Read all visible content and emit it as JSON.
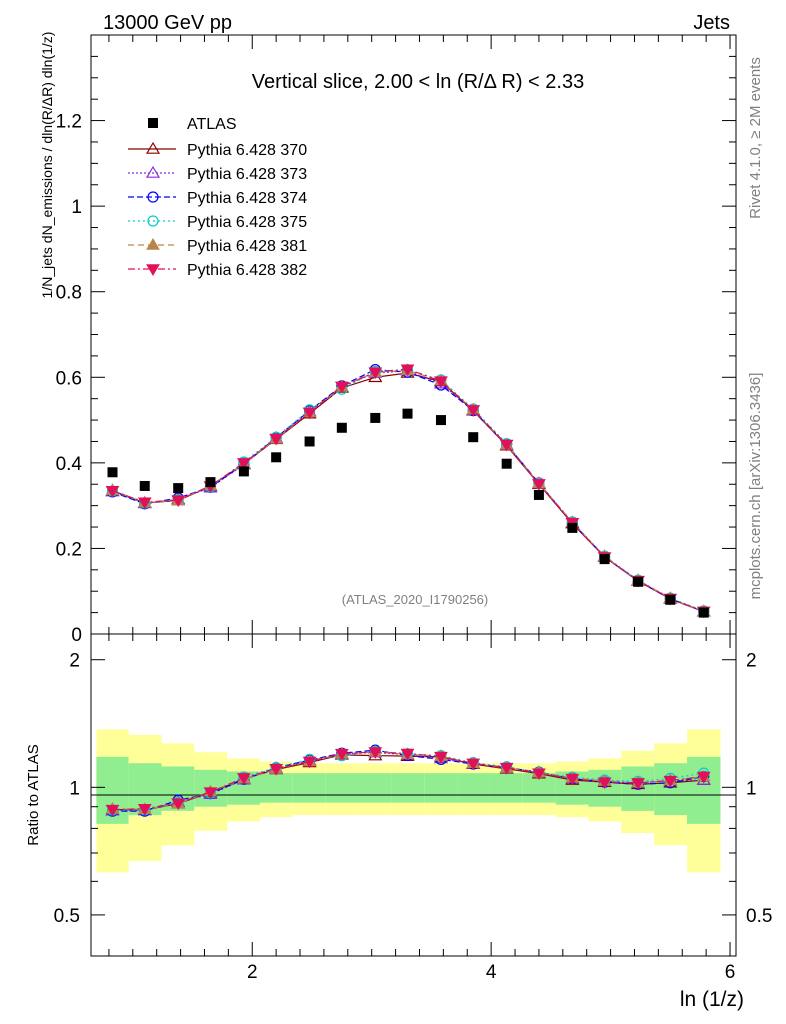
{
  "header": {
    "left": "13000 GeV pp",
    "right": "Jets"
  },
  "chart_data": {
    "type": "scatter",
    "title": "Vertical slice, 2.00 < ln (R/Δ R) < 2.33",
    "xlabel": "ln (1/z)",
    "ylabel_main": "1/N_jets dN_emissions / dln(R/ΔR) dln(1/z)",
    "ylabel_ratio": "Ratio to ATLAS",
    "xlim": [
      0.65,
      6.05
    ],
    "ylim_main": [
      0.0,
      1.4
    ],
    "ylim_ratio": [
      0.4,
      2.3
    ],
    "x_ticks": [
      "2",
      "4",
      "6"
    ],
    "y_ticks_main": [
      "0",
      "0.2",
      "0.4",
      "0.6",
      "0.8",
      "1",
      "1.2"
    ],
    "y_ticks_ratio": [
      "0.5",
      "1",
      "2"
    ],
    "side_labels": {
      "rivet": "Rivet 4.1.0, ≥ 2M events",
      "mcplots": "mcplots.cern.ch [arXiv:1306.3436]"
    },
    "watermark": "(ATLAS_2020_I1790256)",
    "x": [
      0.83,
      1.1,
      1.38,
      1.65,
      1.93,
      2.2,
      2.48,
      2.75,
      3.03,
      3.3,
      3.58,
      3.85,
      4.13,
      4.4,
      4.68,
      4.95,
      5.23,
      5.5,
      5.78
    ],
    "data": {
      "name": "ATLAS",
      "values": [
        0.378,
        0.346,
        0.341,
        0.355,
        0.38,
        0.413,
        0.45,
        0.482,
        0.505,
        0.515,
        0.5,
        0.46,
        0.398,
        0.325,
        0.248,
        0.175,
        0.122,
        0.08,
        0.05
      ]
    },
    "series": [
      {
        "name": "Pythia 6.428 370",
        "color": "#8b0000",
        "marker": "triangle-open",
        "values": [
          0.335,
          0.306,
          0.312,
          0.345,
          0.398,
          0.455,
          0.515,
          0.575,
          0.6,
          0.61,
          0.59,
          0.522,
          0.44,
          0.35,
          0.258,
          0.18,
          0.124,
          0.082,
          0.052
        ]
      },
      {
        "name": "Pythia 6.428 373",
        "color": "#8a2be2",
        "marker": "triangle-open",
        "values": [
          0.333,
          0.305,
          0.315,
          0.342,
          0.396,
          0.458,
          0.52,
          0.578,
          0.61,
          0.615,
          0.585,
          0.523,
          0.442,
          0.352,
          0.26,
          0.181,
          0.125,
          0.083,
          0.052
        ]
      },
      {
        "name": "Pythia 6.428 374",
        "color": "#0000ff",
        "marker": "circle-open",
        "values": [
          0.332,
          0.304,
          0.318,
          0.343,
          0.397,
          0.459,
          0.522,
          0.58,
          0.618,
          0.612,
          0.582,
          0.522,
          0.443,
          0.353,
          0.26,
          0.18,
          0.124,
          0.082,
          0.053
        ]
      },
      {
        "name": "Pythia 6.428 375",
        "color": "#00ced1",
        "marker": "circle-open",
        "values": [
          0.334,
          0.306,
          0.314,
          0.344,
          0.402,
          0.46,
          0.524,
          0.572,
          0.614,
          0.618,
          0.594,
          0.526,
          0.445,
          0.352,
          0.262,
          0.182,
          0.126,
          0.084,
          0.054
        ]
      },
      {
        "name": "Pythia 6.428 381",
        "color": "#b8864b",
        "marker": "triangle-filled",
        "values": [
          0.336,
          0.307,
          0.312,
          0.347,
          0.398,
          0.456,
          0.518,
          0.578,
          0.612,
          0.616,
          0.592,
          0.524,
          0.442,
          0.352,
          0.261,
          0.181,
          0.125,
          0.083,
          0.053
        ]
      },
      {
        "name": "Pythia 6.428 382",
        "color": "#e0105a",
        "marker": "triangle-down-filled",
        "values": [
          0.335,
          0.308,
          0.313,
          0.346,
          0.4,
          0.457,
          0.518,
          0.579,
          0.612,
          0.619,
          0.591,
          0.524,
          0.443,
          0.351,
          0.26,
          0.18,
          0.125,
          0.083,
          0.053
        ]
      }
    ],
    "ratio_band_green": [
      0.18,
      0.14,
      0.12,
      0.1,
      0.09,
      0.08,
      0.08,
      0.08,
      0.08,
      0.08,
      0.08,
      0.08,
      0.08,
      0.08,
      0.09,
      0.1,
      0.12,
      0.14,
      0.18
    ],
    "ratio_band_yellow": [
      0.37,
      0.33,
      0.27,
      0.21,
      0.17,
      0.15,
      0.14,
      0.14,
      0.14,
      0.14,
      0.14,
      0.14,
      0.14,
      0.14,
      0.15,
      0.17,
      0.22,
      0.27,
      0.37
    ],
    "colors": {
      "green_band": "#90ee90",
      "yellow_band": "#ffff99"
    }
  }
}
